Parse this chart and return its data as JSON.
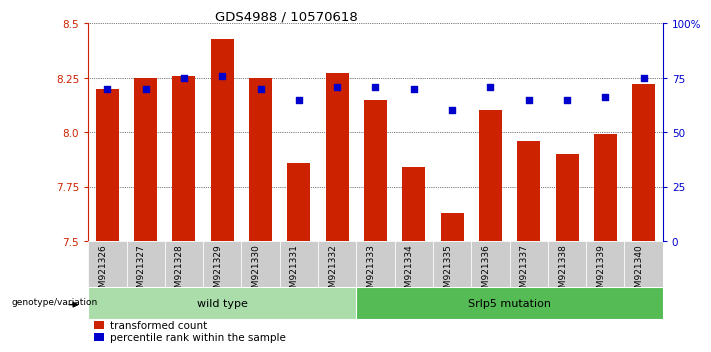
{
  "title": "GDS4988 / 10570618",
  "samples": [
    "GSM921326",
    "GSM921327",
    "GSM921328",
    "GSM921329",
    "GSM921330",
    "GSM921331",
    "GSM921332",
    "GSM921333",
    "GSM921334",
    "GSM921335",
    "GSM921336",
    "GSM921337",
    "GSM921338",
    "GSM921339",
    "GSM921340"
  ],
  "transformed_count": [
    8.2,
    8.25,
    8.26,
    8.43,
    8.25,
    7.86,
    8.27,
    8.15,
    7.84,
    7.63,
    8.1,
    7.96,
    7.9,
    7.99,
    8.22
  ],
  "percentile_rank": [
    70,
    70,
    75,
    76,
    70,
    65,
    71,
    71,
    70,
    60,
    71,
    65,
    65,
    66,
    75
  ],
  "group_labels": [
    "wild type",
    "Srlp5 mutation"
  ],
  "group_split": 7,
  "bar_color": "#cc2200",
  "dot_color": "#0000cc",
  "ylim_left": [
    7.5,
    8.5
  ],
  "ylim_right": [
    0,
    100
  ],
  "yticks_left": [
    7.5,
    7.75,
    8.0,
    8.25,
    8.5
  ],
  "yticks_right": [
    0,
    25,
    50,
    75,
    100
  ],
  "ytick_labels_right": [
    "0",
    "25",
    "50",
    "75",
    "100%"
  ],
  "left_tick_color": "#cc2200",
  "right_tick_color": "#0000cc",
  "background_color": "#ffffff",
  "grid_color": "#000000",
  "legend_items": [
    "transformed count",
    "percentile rank within the sample"
  ],
  "genotype_label": "genotype/variation",
  "group_color_wild": "#aaddaa",
  "group_color_mut": "#55bb55",
  "bar_width": 0.6
}
